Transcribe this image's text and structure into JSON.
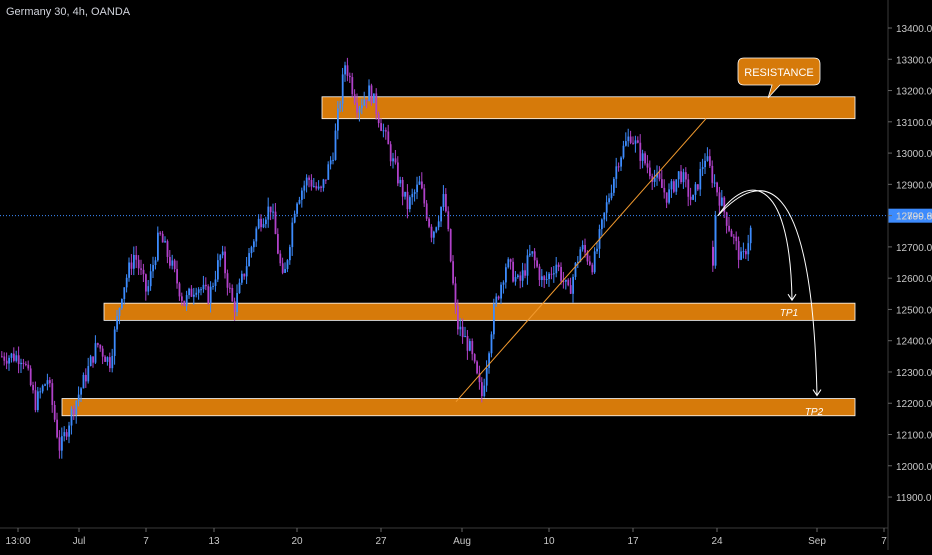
{
  "header": {
    "symbol": "Germany 30, 4h, OANDA"
  },
  "colors": {
    "background": "#000000",
    "up_candle": "#3d8bfd",
    "down_candle": "#b041c9",
    "zone_fill": "#d67a0a",
    "zone_border": "#ffffff",
    "price_line": "#3d8bfd",
    "trendline": "#f29a2e",
    "projection": "#ffffff",
    "axis_text": "#c8c8c8",
    "callout_fill": "#d67a0a"
  },
  "price_axis": {
    "ticks": [
      "13400.0",
      "13300.0",
      "13200.0",
      "13100.0",
      "13000.0",
      "12900.0",
      "12800.0",
      "12700.0",
      "12600.0",
      "12500.0",
      "12400.0",
      "12300.0",
      "12200.0",
      "12100.0",
      "12000.0",
      "11900.0"
    ],
    "current_price": "12799.8"
  },
  "time_axis": {
    "ticks": [
      "13:00",
      "Jul",
      "7",
      "13",
      "20",
      "27",
      "Aug",
      "10",
      "17",
      "24",
      "Sep",
      "7"
    ]
  },
  "annotations": {
    "resistance_label": "RESISTANCE",
    "tp1_label": "TP1",
    "tp2_label": "TP2"
  },
  "chart_data": {
    "type": "candlestick",
    "title": "Germany 30, 4h, OANDA",
    "interval": "4h",
    "x_range": [
      "Jun 26",
      "Sep 7"
    ],
    "ylim": [
      11850,
      13450
    ],
    "current_price": 12799.8,
    "zones": [
      {
        "name": "RESISTANCE",
        "low": 13110,
        "high": 13180
      },
      {
        "name": "TP1",
        "low": 12465,
        "high": 12520
      },
      {
        "name": "TP2",
        "low": 12160,
        "high": 12215
      }
    ],
    "trendline": {
      "from": {
        "date": "Aug 1",
        "price": 12205
      },
      "to": {
        "date": "Aug 22",
        "price": 13110
      }
    },
    "close_path": [
      [
        "Jun 26",
        12350
      ],
      [
        "Jun 27",
        12200
      ],
      [
        "Jun 28",
        12280
      ],
      [
        "Jun 29",
        12050
      ],
      [
        "Jun 30",
        12180
      ],
      [
        "Jul 1",
        12280
      ],
      [
        "Jul 2",
        12390
      ],
      [
        "Jul 3",
        12330
      ],
      [
        "Jul 4",
        12560
      ],
      [
        "Jul 5",
        12680
      ],
      [
        "Jul 6",
        12550
      ],
      [
        "Jul 7",
        12740
      ],
      [
        "Jul 8",
        12640
      ],
      [
        "Jul 9",
        12520
      ],
      [
        "Jul 10",
        12580
      ],
      [
        "Jul 11",
        12540
      ],
      [
        "Jul 12",
        12680
      ],
      [
        "Jul 13",
        12500
      ],
      [
        "Jul 14",
        12640
      ],
      [
        "Jul 15",
        12780
      ],
      [
        "Jul 16",
        12830
      ],
      [
        "Jul 17",
        12580
      ],
      [
        "Jul 18",
        12850
      ],
      [
        "Jul 19",
        12920
      ],
      [
        "Jul 20",
        12870
      ],
      [
        "Jul 21",
        13000
      ],
      [
        "Jul 22",
        13290
      ],
      [
        "Jul 23",
        13150
      ],
      [
        "Jul 24",
        13200
      ],
      [
        "Jul 25",
        13080
      ],
      [
        "Jul 26",
        12950
      ],
      [
        "Jul 27",
        12830
      ],
      [
        "Jul 28",
        12900
      ],
      [
        "Jul 29",
        12740
      ],
      [
        "Jul 30",
        12860
      ],
      [
        "Jul 31",
        12450
      ],
      [
        "Aug 1",
        12380
      ],
      [
        "Aug 2",
        12220
      ],
      [
        "Aug 3",
        12500
      ],
      [
        "Aug 4",
        12650
      ],
      [
        "Aug 5",
        12580
      ],
      [
        "Aug 6",
        12680
      ],
      [
        "Aug 7",
        12580
      ],
      [
        "Aug 8",
        12650
      ],
      [
        "Aug 9",
        12550
      ],
      [
        "Aug 10",
        12700
      ],
      [
        "Aug 11",
        12640
      ],
      [
        "Aug 12",
        12820
      ],
      [
        "Aug 13",
        12980
      ],
      [
        "Aug 14",
        13060
      ],
      [
        "Aug 15",
        12980
      ],
      [
        "Aug 16",
        12920
      ],
      [
        "Aug 17",
        12860
      ],
      [
        "Aug 18",
        12940
      ],
      [
        "Aug 19",
        12840
      ],
      [
        "Aug 20",
        12990
      ],
      [
        "Aug 21",
        12880
      ],
      [
        "Aug 22",
        12760
      ],
      [
        "Aug 23",
        12650
      ],
      [
        "Aug 24",
        12800
      ]
    ],
    "projection": {
      "from": {
        "date": "Aug 24",
        "price": 12800
      },
      "targets": [
        "TP1",
        "TP2"
      ]
    }
  }
}
